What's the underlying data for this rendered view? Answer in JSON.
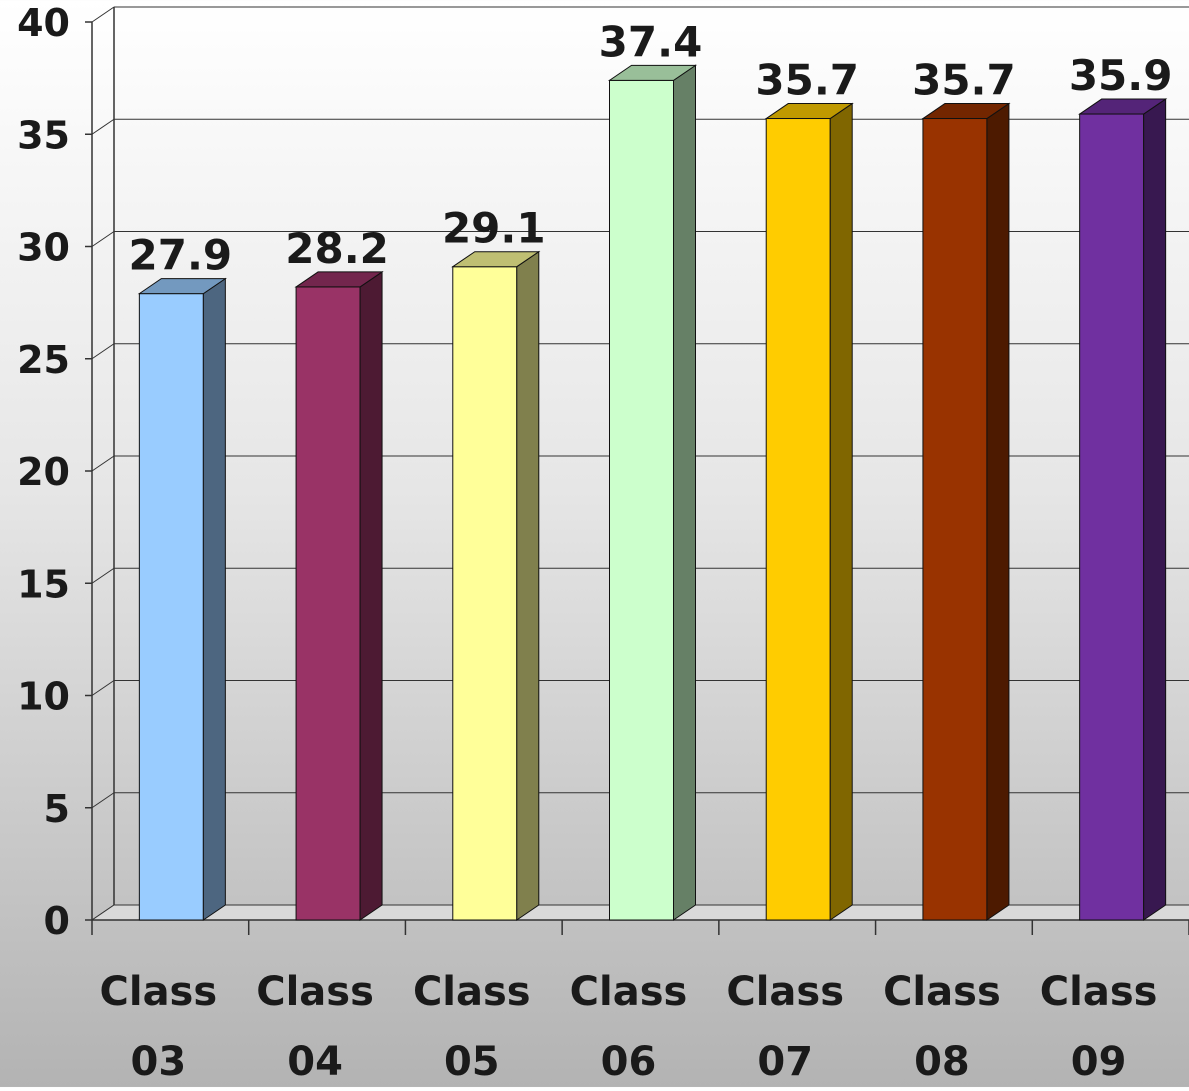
{
  "chart_data": {
    "type": "bar",
    "style": "3d",
    "title": "",
    "xlabel": "",
    "ylabel": "",
    "ylim": [
      0,
      40
    ],
    "yticks": [
      "0",
      "5",
      "10",
      "15",
      "20",
      "25",
      "30",
      "35",
      "40"
    ],
    "grid": true,
    "legend": "none",
    "categories": [
      [
        "Class",
        "03"
      ],
      [
        "Class",
        "04"
      ],
      [
        "Class",
        "05"
      ],
      [
        "Class",
        "06"
      ],
      [
        "Class",
        "07"
      ],
      [
        "Class",
        "08"
      ],
      [
        "Class",
        "09"
      ]
    ],
    "values": [
      27.9,
      28.2,
      29.1,
      37.4,
      35.7,
      35.7,
      35.9
    ],
    "value_labels": [
      "27.9",
      "28.2",
      "29.1",
      "37.4",
      "35.7",
      "35.7",
      "35.9"
    ],
    "colors": [
      "#99ccff",
      "#993366",
      "#ffff99",
      "#ccffcc",
      "#ffcc00",
      "#993300",
      "#7030a0"
    ],
    "grid_color": "#333333",
    "text_color": "#1a1a1a"
  }
}
